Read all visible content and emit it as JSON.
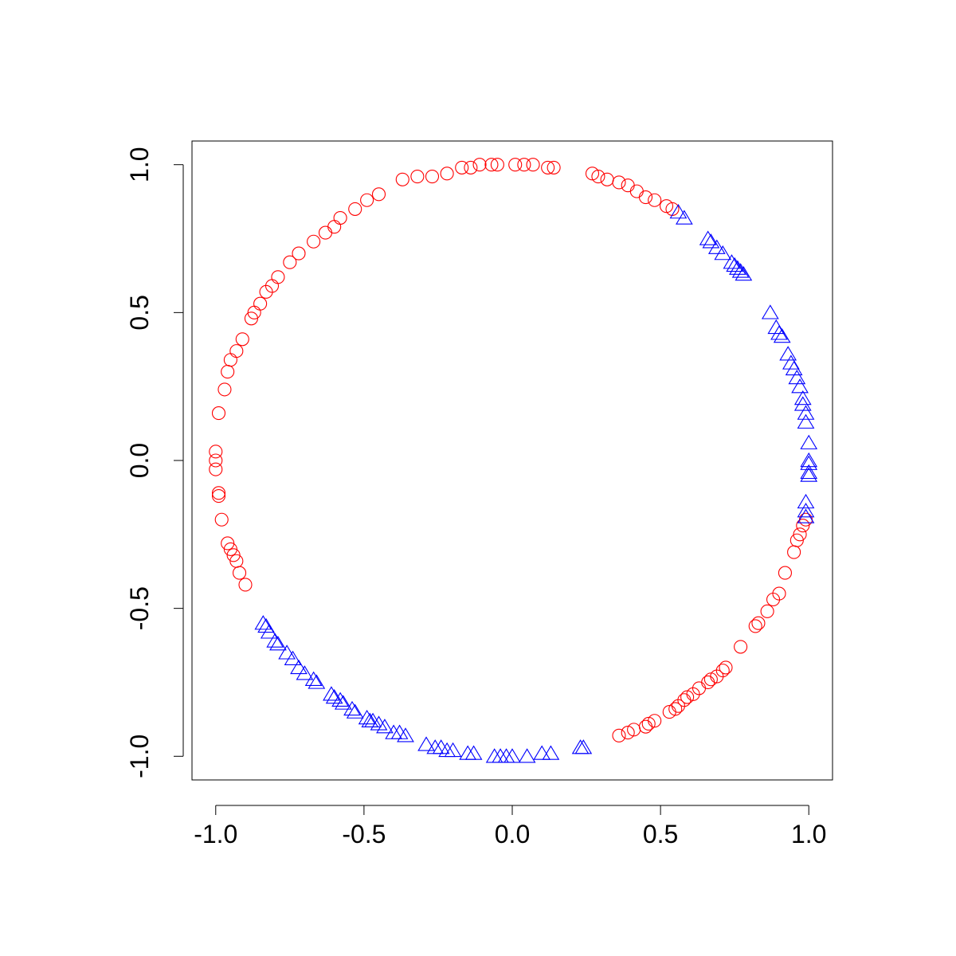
{
  "chart_data": {
    "type": "scatter",
    "title": "",
    "xlabel": "",
    "ylabel": "",
    "xlim": [
      -1.08,
      1.08
    ],
    "ylim": [
      -1.08,
      1.08
    ],
    "x_ticks": [
      -1.0,
      -0.5,
      0.0,
      0.5,
      1.0
    ],
    "x_tick_labels": [
      "-1.0",
      "-0.5",
      "0.0",
      "0.5",
      "1.0"
    ],
    "y_ticks": [
      -1.0,
      -0.5,
      0.0,
      0.5,
      1.0
    ],
    "y_tick_labels": [
      "-1.0",
      "-0.5",
      "0.0",
      "0.5",
      "1.0"
    ],
    "grid": false,
    "legend": "none",
    "series": [
      {
        "marker": "circle",
        "color": "#ff0000",
        "points": [
          [
            -0.37,
            0.95
          ],
          [
            -0.32,
            0.96
          ],
          [
            -0.27,
            0.96
          ],
          [
            -0.22,
            0.97
          ],
          [
            -0.17,
            0.99
          ],
          [
            -0.14,
            0.99
          ],
          [
            -0.11,
            1.0
          ],
          [
            -0.07,
            1.0
          ],
          [
            -0.05,
            1.0
          ],
          [
            0.01,
            1.0
          ],
          [
            0.04,
            1.0
          ],
          [
            0.07,
            1.0
          ],
          [
            0.12,
            0.99
          ],
          [
            0.14,
            0.99
          ],
          [
            0.27,
            0.97
          ],
          [
            0.29,
            0.96
          ],
          [
            0.32,
            0.95
          ],
          [
            0.36,
            0.94
          ],
          [
            0.39,
            0.93
          ],
          [
            0.42,
            0.91
          ],
          [
            0.45,
            0.89
          ],
          [
            0.48,
            0.88
          ],
          [
            0.52,
            0.86
          ],
          [
            0.54,
            0.85
          ],
          [
            -0.45,
            0.9
          ],
          [
            -0.49,
            0.88
          ],
          [
            -0.53,
            0.85
          ],
          [
            -0.58,
            0.82
          ],
          [
            -0.6,
            0.79
          ],
          [
            -0.63,
            0.77
          ],
          [
            -0.67,
            0.74
          ],
          [
            -0.72,
            0.7
          ],
          [
            -0.75,
            0.67
          ],
          [
            -0.79,
            0.62
          ],
          [
            -0.81,
            0.59
          ],
          [
            -0.83,
            0.57
          ],
          [
            -0.85,
            0.53
          ],
          [
            -0.87,
            0.5
          ],
          [
            -0.88,
            0.48
          ],
          [
            -0.91,
            0.41
          ],
          [
            -0.93,
            0.37
          ],
          [
            -0.95,
            0.34
          ],
          [
            -0.96,
            0.3
          ],
          [
            -0.97,
            0.24
          ],
          [
            -0.99,
            0.16
          ],
          [
            -1.0,
            0.03
          ],
          [
            -1.0,
            0.0
          ],
          [
            -1.0,
            -0.03
          ],
          [
            -0.99,
            -0.11
          ],
          [
            -0.99,
            -0.12
          ],
          [
            -0.98,
            -0.2
          ],
          [
            -0.96,
            -0.28
          ],
          [
            -0.95,
            -0.3
          ],
          [
            -0.94,
            -0.32
          ],
          [
            -0.93,
            -0.34
          ],
          [
            -0.92,
            -0.38
          ],
          [
            -0.9,
            -0.42
          ],
          [
            0.99,
            -0.2
          ],
          [
            0.98,
            -0.22
          ],
          [
            0.97,
            -0.25
          ],
          [
            0.96,
            -0.27
          ],
          [
            0.95,
            -0.31
          ],
          [
            0.92,
            -0.38
          ],
          [
            0.9,
            -0.45
          ],
          [
            0.88,
            -0.47
          ],
          [
            0.86,
            -0.51
          ],
          [
            0.83,
            -0.55
          ],
          [
            0.82,
            -0.56
          ],
          [
            0.77,
            -0.63
          ],
          [
            0.72,
            -0.7
          ],
          [
            0.71,
            -0.71
          ],
          [
            0.69,
            -0.73
          ],
          [
            0.67,
            -0.74
          ],
          [
            0.66,
            -0.75
          ],
          [
            0.63,
            -0.77
          ],
          [
            0.61,
            -0.79
          ],
          [
            0.59,
            -0.8
          ],
          [
            0.58,
            -0.81
          ],
          [
            0.56,
            -0.83
          ],
          [
            0.55,
            -0.84
          ],
          [
            0.53,
            -0.85
          ],
          [
            0.48,
            -0.88
          ],
          [
            0.46,
            -0.89
          ],
          [
            0.45,
            -0.9
          ],
          [
            0.41,
            -0.91
          ],
          [
            0.39,
            -0.92
          ],
          [
            0.36,
            -0.93
          ]
        ]
      },
      {
        "marker": "triangle",
        "color": "#0000ff",
        "points": [
          [
            0.56,
            0.84
          ],
          [
            0.58,
            0.82
          ],
          [
            0.66,
            0.75
          ],
          [
            0.67,
            0.74
          ],
          [
            0.69,
            0.72
          ],
          [
            0.71,
            0.7
          ],
          [
            0.74,
            0.67
          ],
          [
            0.75,
            0.66
          ],
          [
            0.76,
            0.65
          ],
          [
            0.77,
            0.64
          ],
          [
            0.78,
            0.63
          ],
          [
            0.87,
            0.5
          ],
          [
            0.89,
            0.45
          ],
          [
            0.9,
            0.43
          ],
          [
            0.91,
            0.42
          ],
          [
            0.93,
            0.36
          ],
          [
            0.94,
            0.33
          ],
          [
            0.95,
            0.31
          ],
          [
            0.96,
            0.28
          ],
          [
            0.97,
            0.25
          ],
          [
            0.98,
            0.21
          ],
          [
            0.98,
            0.19
          ],
          [
            0.99,
            0.16
          ],
          [
            0.99,
            0.13
          ],
          [
            1.0,
            0.06
          ],
          [
            1.0,
            0.0
          ],
          [
            1.0,
            -0.01
          ],
          [
            1.0,
            -0.04
          ],
          [
            1.0,
            -0.05
          ],
          [
            0.99,
            -0.14
          ],
          [
            0.99,
            -0.17
          ],
          [
            0.99,
            -0.19
          ],
          [
            -0.84,
            -0.55
          ],
          [
            -0.83,
            -0.56
          ],
          [
            -0.82,
            -0.58
          ],
          [
            -0.8,
            -0.61
          ],
          [
            -0.79,
            -0.62
          ],
          [
            -0.76,
            -0.65
          ],
          [
            -0.74,
            -0.67
          ],
          [
            -0.72,
            -0.7
          ],
          [
            -0.7,
            -0.72
          ],
          [
            -0.67,
            -0.74
          ],
          [
            -0.66,
            -0.75
          ],
          [
            -0.61,
            -0.79
          ],
          [
            -0.6,
            -0.8
          ],
          [
            -0.58,
            -0.81
          ],
          [
            -0.57,
            -0.82
          ],
          [
            -0.54,
            -0.84
          ],
          [
            -0.53,
            -0.85
          ],
          [
            -0.49,
            -0.87
          ],
          [
            -0.48,
            -0.88
          ],
          [
            -0.47,
            -0.88
          ],
          [
            -0.45,
            -0.89
          ],
          [
            -0.43,
            -0.9
          ],
          [
            -0.4,
            -0.92
          ],
          [
            -0.38,
            -0.92
          ],
          [
            -0.36,
            -0.93
          ],
          [
            -0.29,
            -0.96
          ],
          [
            -0.26,
            -0.97
          ],
          [
            -0.24,
            -0.97
          ],
          [
            -0.22,
            -0.98
          ],
          [
            -0.2,
            -0.98
          ],
          [
            -0.15,
            -0.99
          ],
          [
            -0.13,
            -0.99
          ],
          [
            -0.06,
            -1.0
          ],
          [
            -0.04,
            -1.0
          ],
          [
            -0.02,
            -1.0
          ],
          [
            0.0,
            -1.0
          ],
          [
            0.05,
            -1.0
          ],
          [
            0.1,
            -0.99
          ],
          [
            0.13,
            -0.99
          ],
          [
            0.23,
            -0.97
          ],
          [
            0.24,
            -0.97
          ]
        ]
      }
    ]
  }
}
